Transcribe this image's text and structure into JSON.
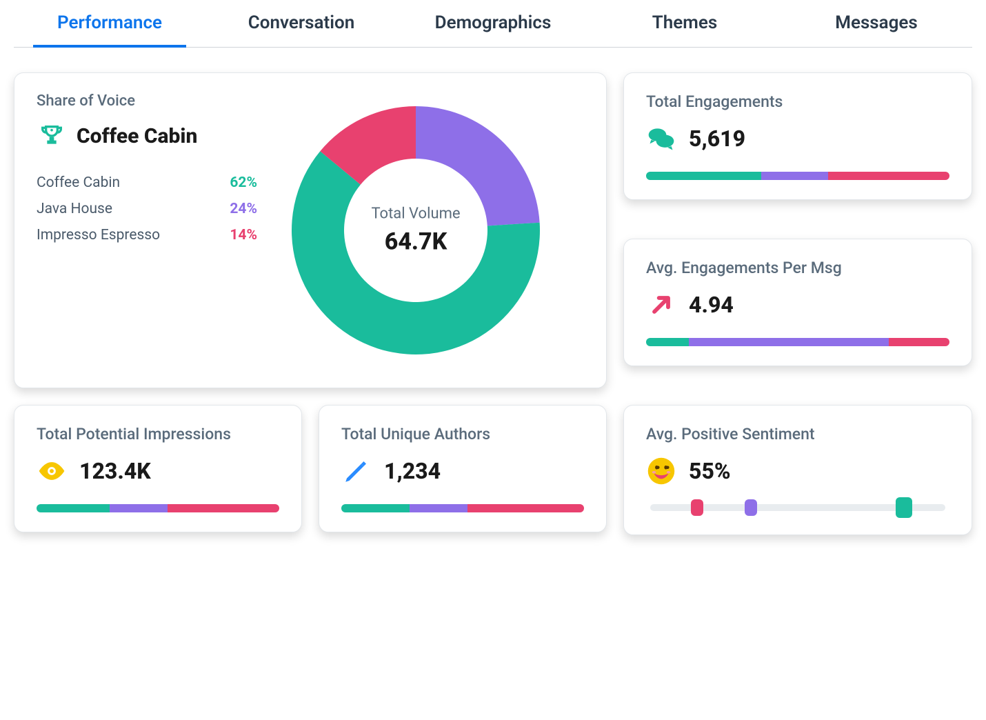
{
  "tabs": {
    "items": [
      "Performance",
      "Conversation",
      "Demographics",
      "Themes",
      "Messages"
    ],
    "active_index": 0,
    "active_color": "#0d75ec",
    "inactive_color": "#2b3a4a"
  },
  "colors": {
    "teal": "#1abc9c",
    "purple": "#8e6fe8",
    "pink": "#e8416f",
    "yellow": "#f7c600",
    "blue": "#2a8cff",
    "track": "#e8ecef",
    "text_muted": "#5a6b7b"
  },
  "share_of_voice": {
    "title": "Share of Voice",
    "winner": "Coffee Cabin",
    "type": "donut",
    "center_label": "Total Volume",
    "center_value": "64.7K",
    "donut": {
      "outer_radius": 180,
      "inner_radius": 104,
      "start_angle_deg": -90
    },
    "series": [
      {
        "label": "Coffee Cabin",
        "value": 62,
        "display": "62%",
        "color": "#1abc9c"
      },
      {
        "label": "Java House",
        "value": 24,
        "display": "24%",
        "color": "#8e6fe8"
      },
      {
        "label": "Impresso Espresso",
        "value": 14,
        "display": "14%",
        "color": "#e8416f"
      }
    ]
  },
  "cards": {
    "engagements": {
      "title": "Total Engagements",
      "value": "5,619",
      "icon": "chat-bubbles-icon",
      "icon_color": "#1abc9c",
      "bar": [
        {
          "color": "#1abc9c",
          "pct": 38
        },
        {
          "color": "#8e6fe8",
          "pct": 22
        },
        {
          "color": "#e8416f",
          "pct": 40
        }
      ]
    },
    "avg_engagements": {
      "title": "Avg. Engagements Per Msg",
      "value": "4.94",
      "icon": "arrow-up-right-icon",
      "icon_color": "#e8416f",
      "bar": [
        {
          "color": "#1abc9c",
          "pct": 14
        },
        {
          "color": "#8e6fe8",
          "pct": 66
        },
        {
          "color": "#e8416f",
          "pct": 20
        }
      ]
    },
    "impressions": {
      "title": "Total Potential Impressions",
      "value": "123.4K",
      "icon": "eye-icon",
      "icon_color": "#f7c600",
      "bar": [
        {
          "color": "#1abc9c",
          "pct": 30
        },
        {
          "color": "#8e6fe8",
          "pct": 24
        },
        {
          "color": "#e8416f",
          "pct": 46
        }
      ]
    },
    "authors": {
      "title": "Total Unique Authors",
      "value": "1,234",
      "icon": "pencil-icon",
      "icon_color": "#2a8cff",
      "bar": [
        {
          "color": "#1abc9c",
          "pct": 28
        },
        {
          "color": "#8e6fe8",
          "pct": 24
        },
        {
          "color": "#e8416f",
          "pct": 48
        }
      ]
    },
    "sentiment": {
      "title": "Avg. Positive Sentiment",
      "value": "55%",
      "icon": "smile-icon",
      "icon_color": "#f7c600",
      "markers": [
        {
          "color": "#e8416f",
          "position_pct": 16,
          "size": "small"
        },
        {
          "color": "#8e6fe8",
          "position_pct": 34,
          "size": "small"
        },
        {
          "color": "#1abc9c",
          "position_pct": 86,
          "size": "big"
        }
      ]
    }
  }
}
